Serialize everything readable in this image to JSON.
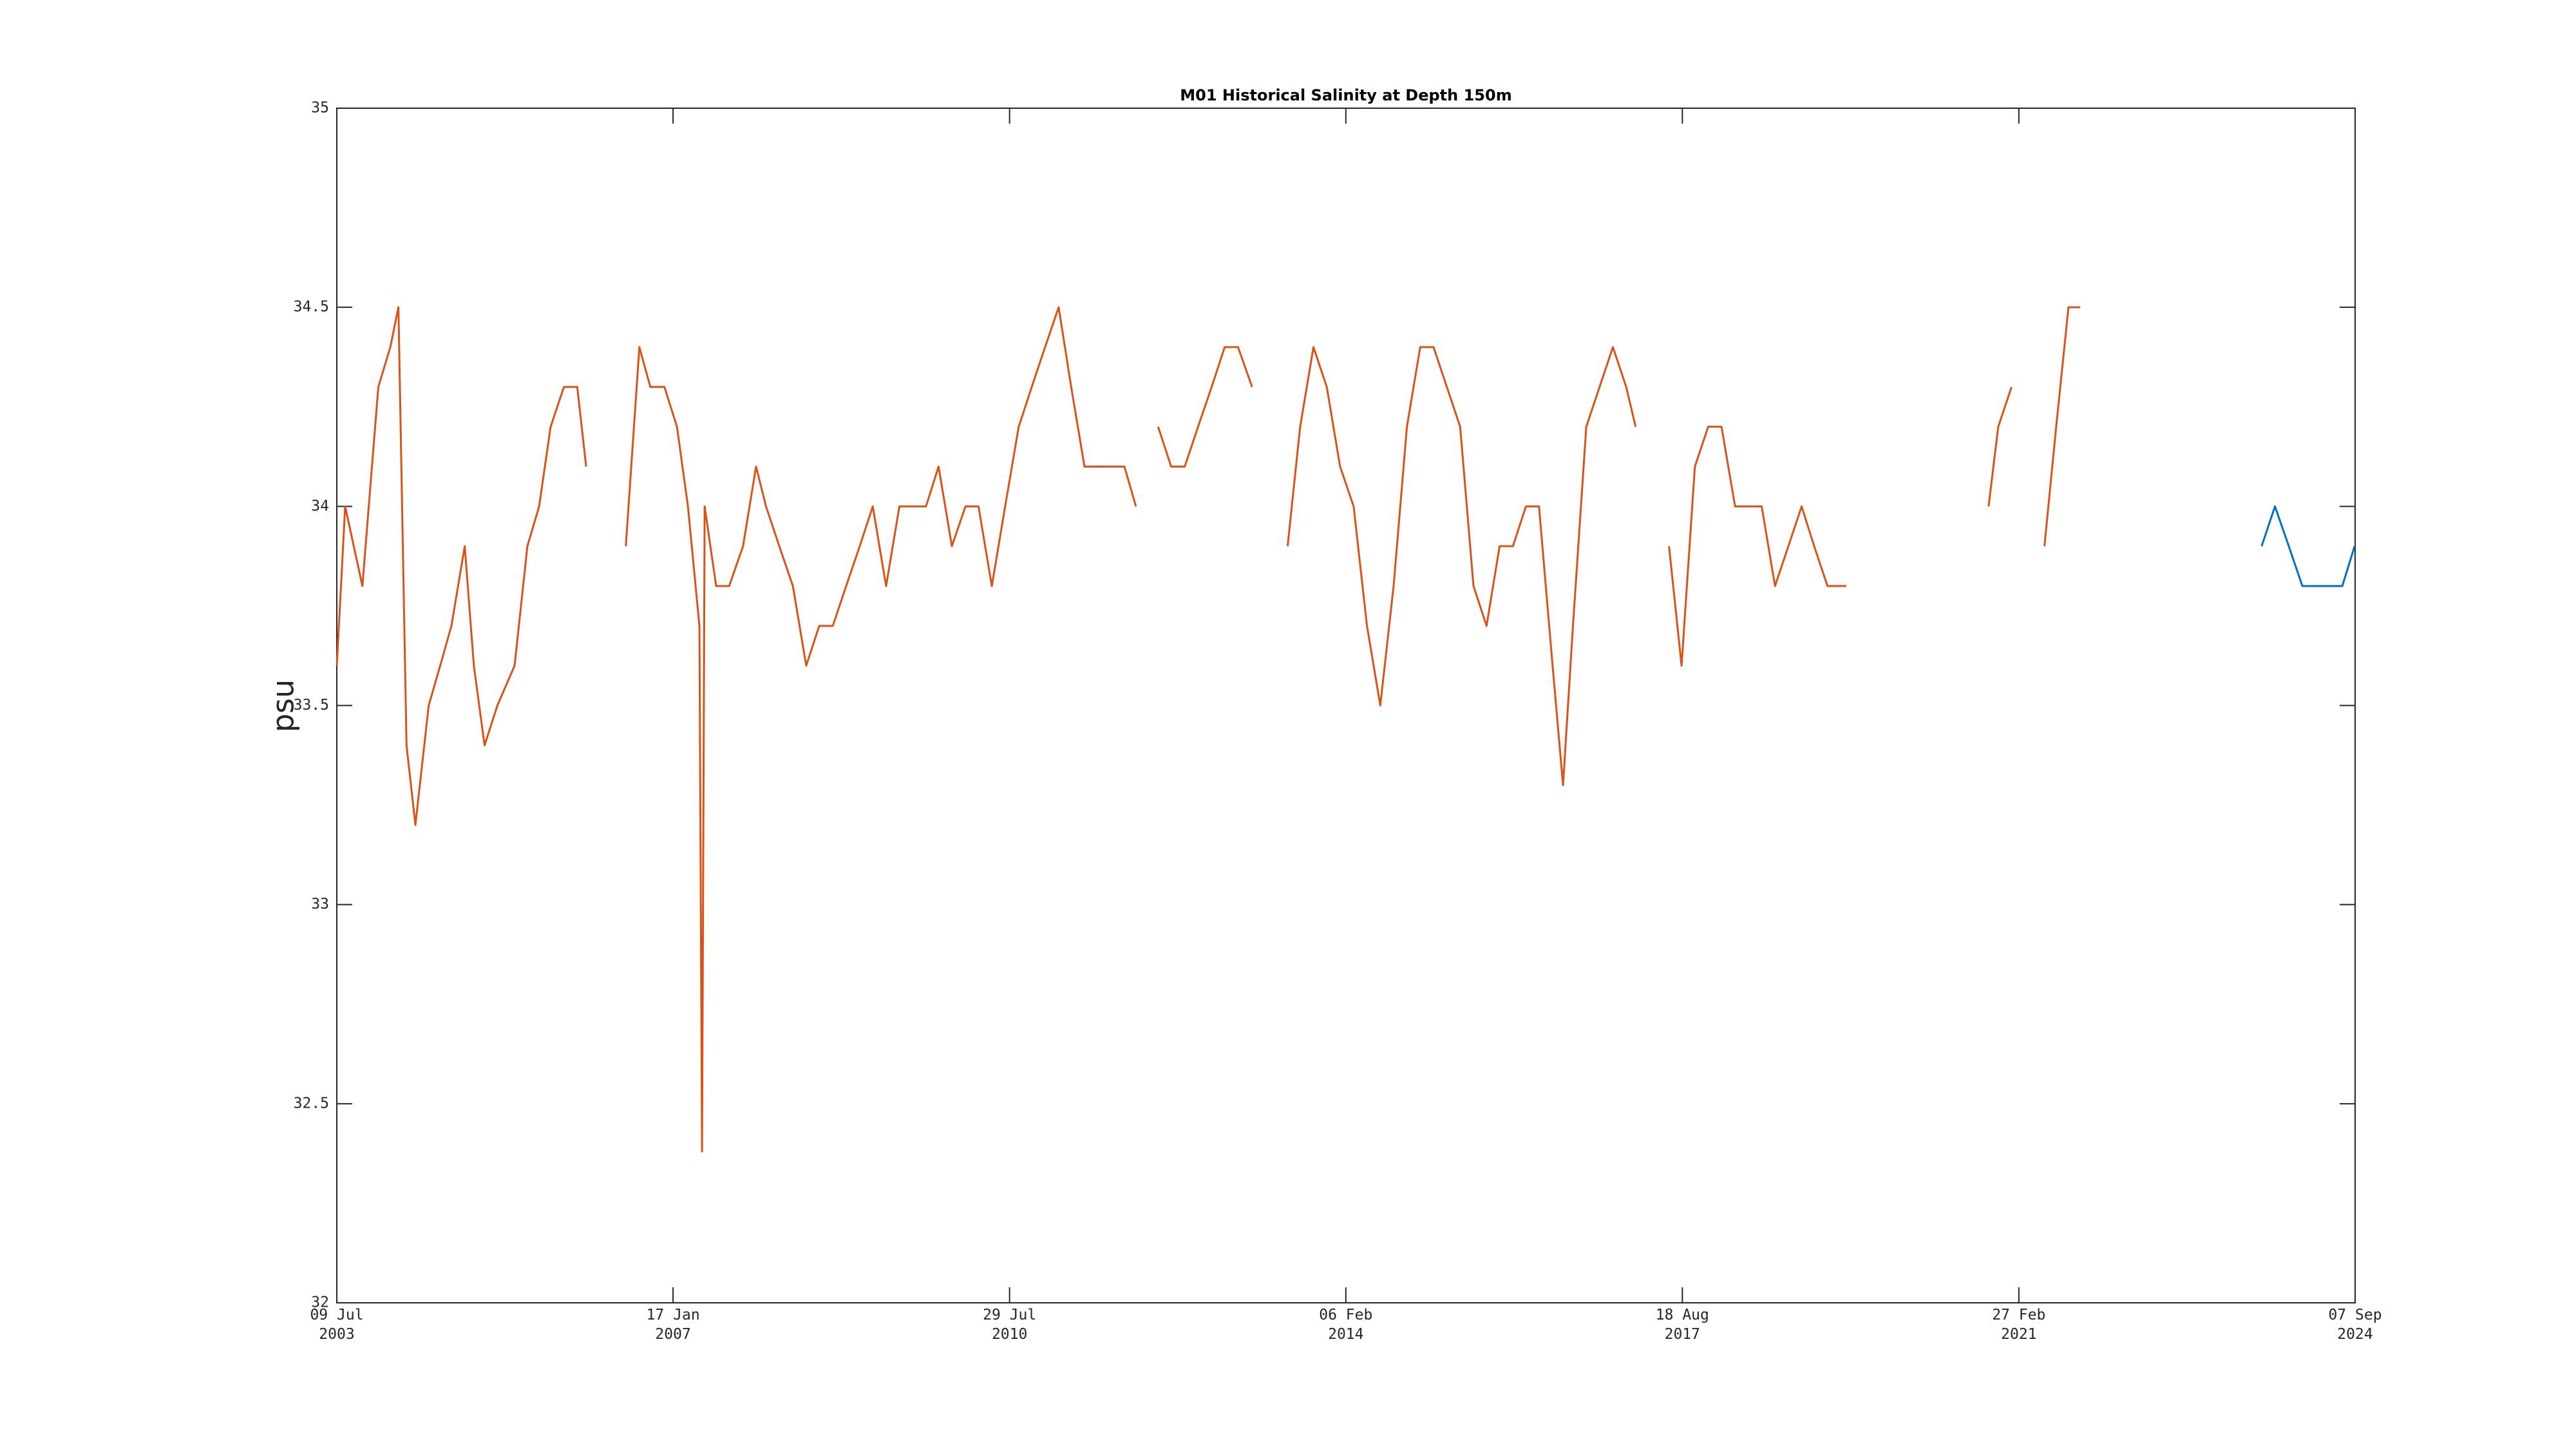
{
  "chart_data": {
    "type": "line",
    "title": "M01 Historical Salinity at Depth 150m",
    "y_label": "psu",
    "xlim": [
      "2003-07-09",
      "2024-09-07"
    ],
    "xticks": [
      {
        "value": "2003-07-09",
        "label": "09 Jul 2003"
      },
      {
        "value": "2007-01-17",
        "label": "17 Jan 2007"
      },
      {
        "value": "2010-07-29",
        "label": "29 Jul 2010"
      },
      {
        "value": "2014-02-06",
        "label": "06 Feb 2014"
      },
      {
        "value": "2017-08-18",
        "label": "18 Aug 2017"
      },
      {
        "value": "2021-02-27",
        "label": "27 Feb 2021"
      },
      {
        "value": "2024-09-07",
        "label": "07 Sep 2024"
      }
    ],
    "ylim": [
      32,
      35
    ],
    "yticks": [
      32,
      32.5,
      33,
      33.5,
      34,
      34.5,
      35
    ],
    "grid": false,
    "series": [
      {
        "color": "#d95319",
        "x": [
          "2003-07-09",
          "2003-08-10",
          "2003-10-15",
          "2003-12-15",
          "2004-01-30",
          "2004-03-01",
          "2004-04-01",
          "2004-05-05",
          "2004-06-25",
          "2004-08-08",
          "2004-09-20",
          "2004-11-10",
          "2004-12-15",
          "2005-01-25",
          "2005-03-15",
          "2005-05-20",
          "2005-07-08",
          "2005-08-22",
          "2005-10-05",
          "2005-11-25",
          "2006-01-15",
          "2006-02-18",
          "2006-04-01",
          "2006-07-20",
          "2006-09-10",
          "2006-10-22",
          "2006-12-15",
          "2007-02-01",
          "2007-03-15",
          "2007-04-28",
          "2007-05-08",
          "2007-05-18",
          "2007-07-01",
          "2007-08-20",
          "2007-10-12",
          "2007-12-01",
          "2008-01-08",
          "2008-02-28",
          "2008-04-20",
          "2008-06-10",
          "2008-07-30",
          "2008-09-20",
          "2008-11-10",
          "2009-01-01",
          "2009-02-20",
          "2009-04-12",
          "2009-06-02",
          "2009-07-24",
          "2009-09-12",
          "2009-10-30",
          "2009-12-20",
          "2010-02-10",
          "2010-04-01",
          "2010-05-22",
          "2010-07-12",
          "2010-09-02",
          "2010-10-22",
          "2010-12-12",
          "2011-02-02",
          "2011-03-22",
          "2011-05-12",
          "2011-07-01",
          "2011-08-22",
          "2011-10-12",
          "2011-11-25",
          "2011-12-20",
          "2012-02-18",
          "2012-04-08",
          "2012-05-30",
          "2012-07-20",
          "2012-09-10",
          "2012-10-30",
          "2012-12-20",
          "2013-02-12",
          "2013-04-01",
          "2013-06-28",
          "2013-08-15",
          "2013-10-05",
          "2013-11-25",
          "2014-01-15",
          "2014-03-08",
          "2014-04-28",
          "2014-06-18",
          "2014-08-08",
          "2014-09-28",
          "2014-11-18",
          "2015-01-08",
          "2015-02-28",
          "2015-04-20",
          "2015-06-10",
          "2015-07-30",
          "2015-09-18",
          "2015-11-08",
          "2015-12-28",
          "2016-02-16",
          "2016-04-08",
          "2016-05-18",
          "2016-06-25",
          "2016-08-15",
          "2016-10-05",
          "2016-11-25",
          "2017-01-15",
          "2017-02-20",
          "2017-04-01",
          "2017-06-28",
          "2017-08-15",
          "2017-10-05",
          "2017-11-25",
          "2018-01-15",
          "2018-03-08",
          "2018-04-28",
          "2018-06-18",
          "2018-08-08",
          "2018-09-28",
          "2018-11-18",
          "2019-01-05",
          "2019-02-25",
          "2019-05-08",
          "2019-08-01",
          "2020-11-03",
          "2020-12-10",
          "2021-01-30",
          "2021-03-20",
          "2021-06-05",
          "2021-07-20",
          "2021-09-05",
          "2021-10-20"
        ],
        "values": [
          33.6,
          34.0,
          33.8,
          34.3,
          34.4,
          34.5,
          33.4,
          33.2,
          33.5,
          33.6,
          33.7,
          33.9,
          33.6,
          33.4,
          33.5,
          33.6,
          33.9,
          34.0,
          34.2,
          34.3,
          34.3,
          34.1,
          null,
          33.9,
          34.4,
          34.3,
          34.3,
          34.2,
          34.0,
          33.7,
          32.38,
          34.0,
          33.8,
          33.8,
          33.9,
          34.1,
          34.0,
          33.9,
          33.8,
          33.6,
          33.7,
          33.7,
          33.8,
          33.9,
          34.0,
          33.8,
          34.0,
          34.0,
          34.0,
          34.1,
          33.9,
          34.0,
          34.0,
          33.8,
          34.0,
          34.2,
          34.3,
          34.4,
          34.5,
          34.3,
          34.1,
          34.1,
          34.1,
          34.1,
          34.0,
          null,
          34.2,
          34.1,
          34.1,
          34.2,
          34.3,
          34.4,
          34.4,
          34.3,
          null,
          33.9,
          34.2,
          34.4,
          34.3,
          34.1,
          34.0,
          33.7,
          33.5,
          33.8,
          34.2,
          34.4,
          34.4,
          34.3,
          34.2,
          33.8,
          33.7,
          33.9,
          33.9,
          34.0,
          34.0,
          33.6,
          33.3,
          33.7,
          34.2,
          34.3,
          34.4,
          34.3,
          34.2,
          null,
          33.9,
          33.6,
          34.1,
          34.2,
          34.2,
          34.0,
          34.0,
          34.0,
          33.8,
          33.9,
          34.0,
          33.9,
          33.8,
          33.8,
          null,
          34.0,
          34.2,
          34.3,
          null,
          33.9,
          34.2,
          34.5,
          34.5
        ]
      },
      {
        "color": "#0072bd",
        "x": [
          "2023-09-15",
          "2023-11-05",
          "2023-12-28",
          "2024-02-18",
          "2024-04-08",
          "2024-05-30",
          "2024-07-20",
          "2024-09-05"
        ],
        "values": [
          33.9,
          34.0,
          33.9,
          33.8,
          33.8,
          33.8,
          33.8,
          33.9
        ]
      }
    ]
  }
}
